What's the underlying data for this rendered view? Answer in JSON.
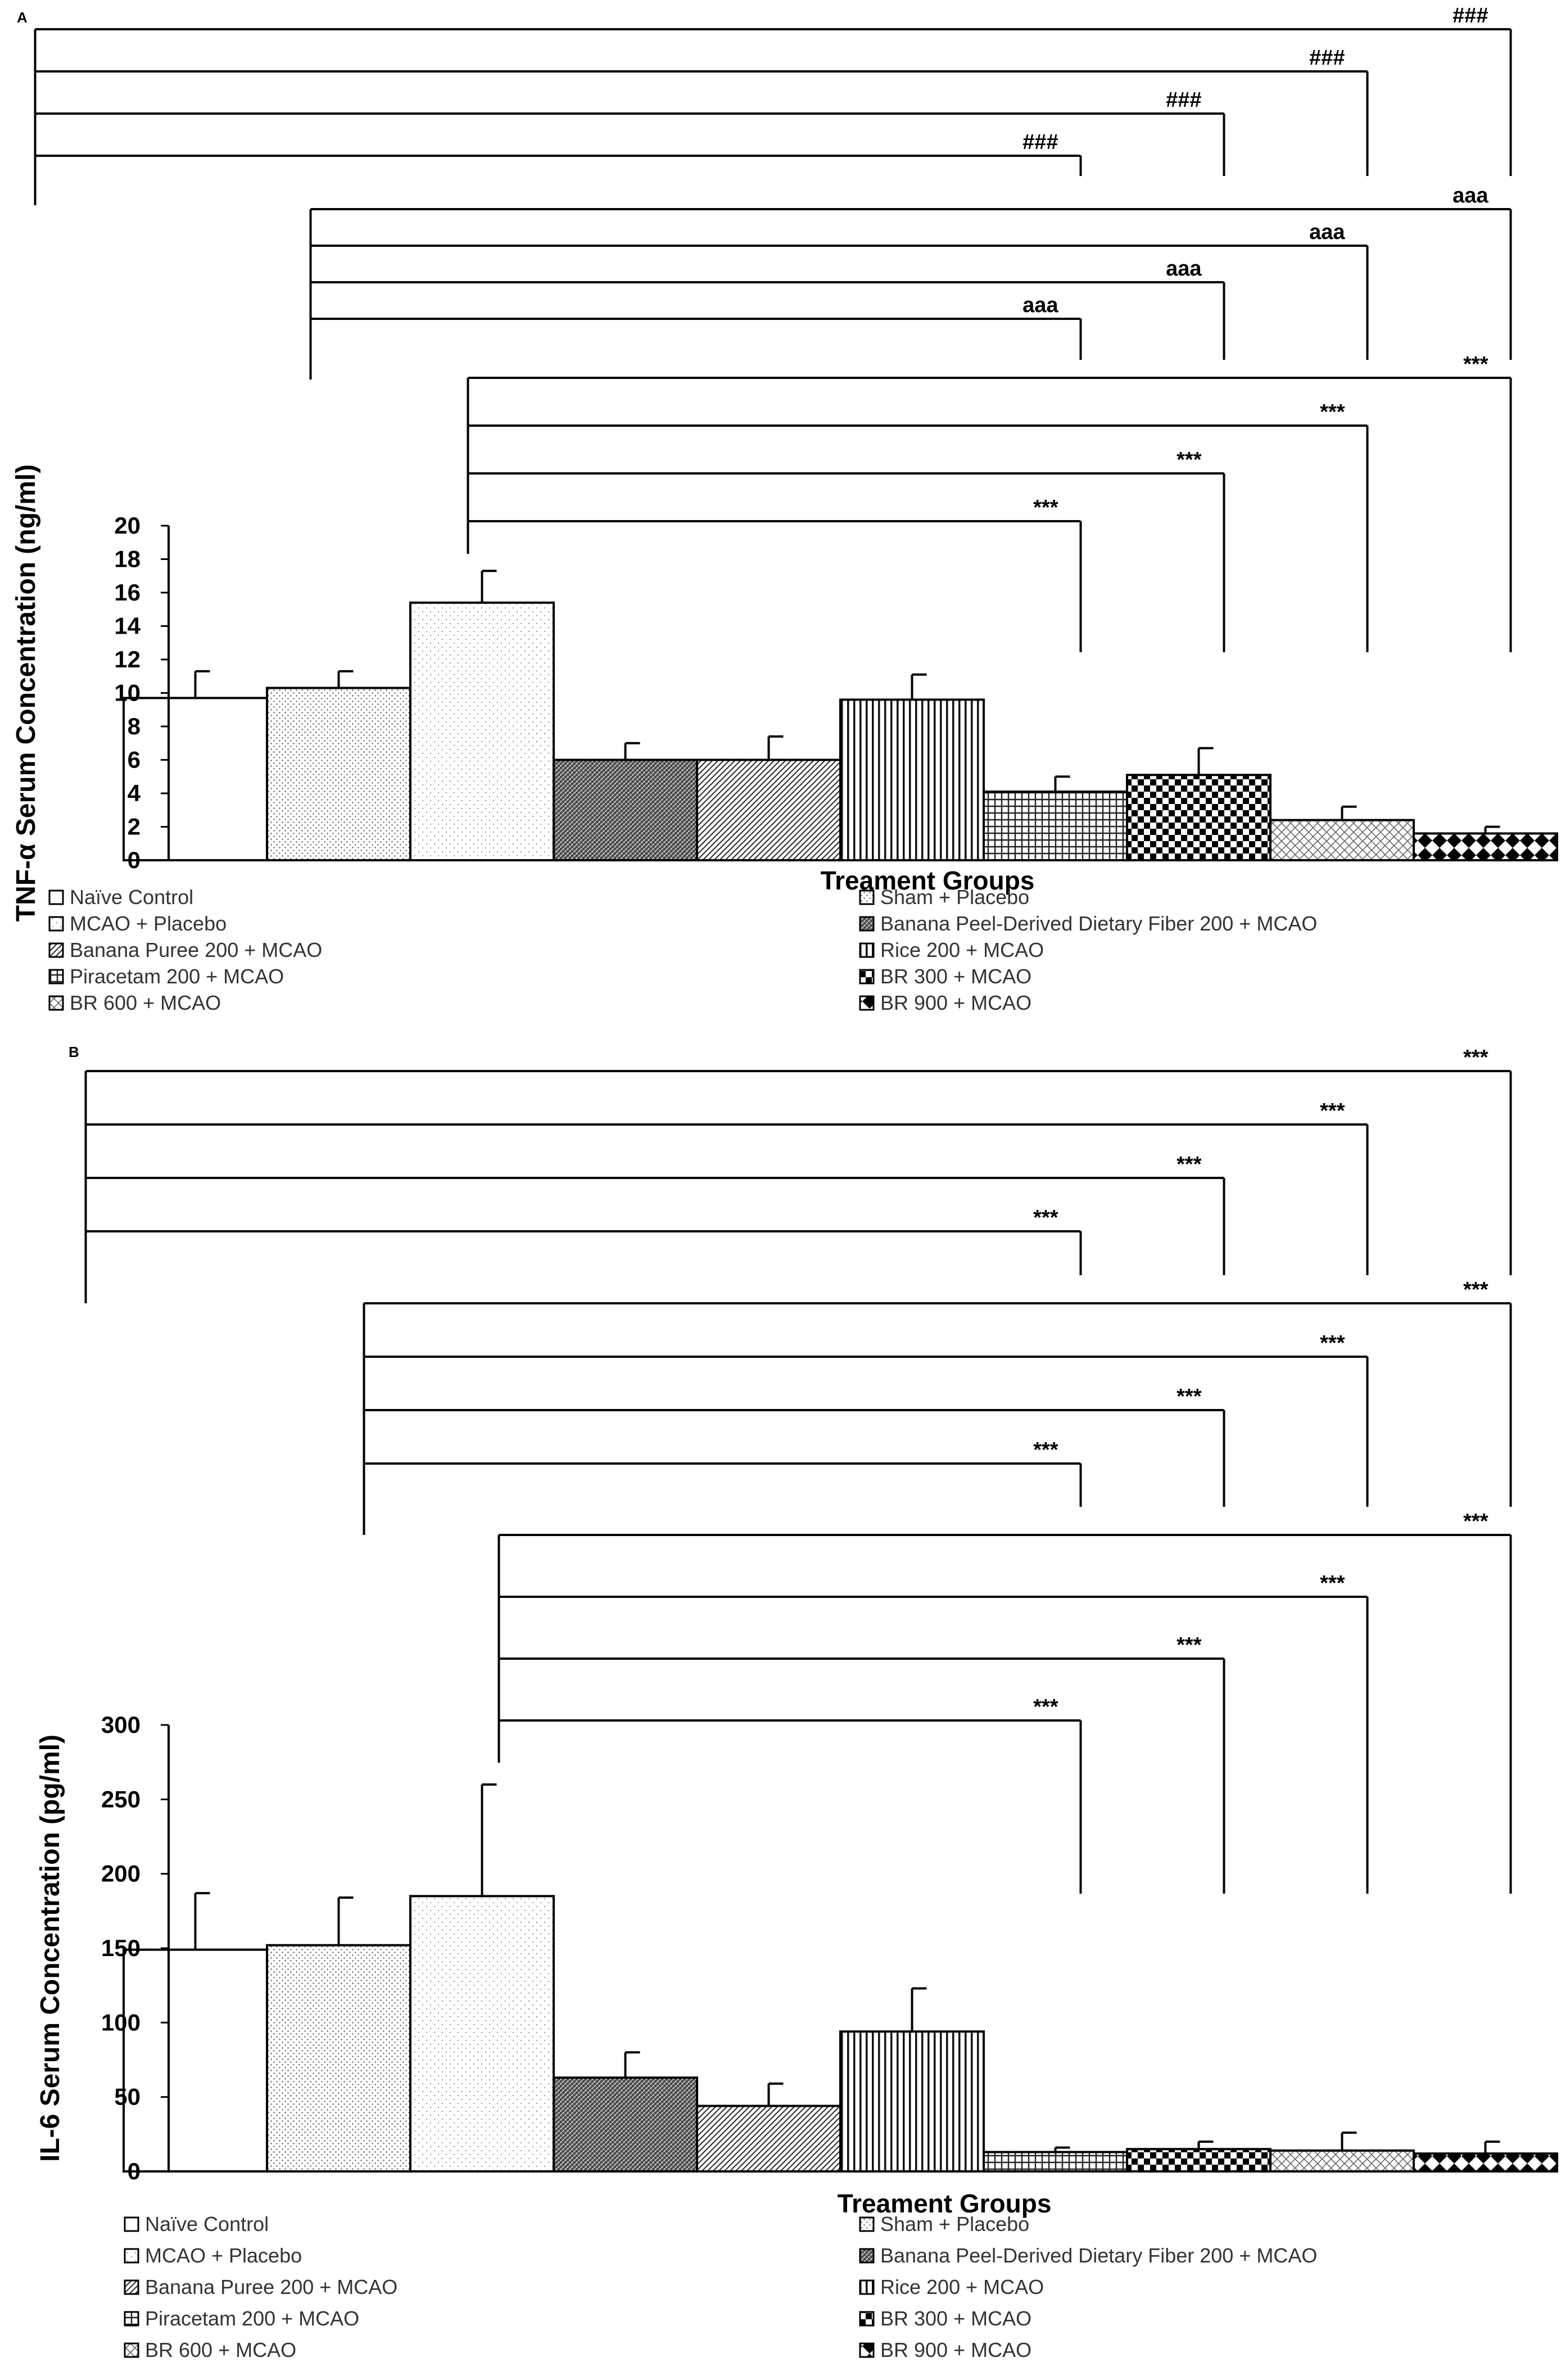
{
  "panels": [
    "A",
    "B"
  ],
  "chart_data": [
    {
      "type": "bar",
      "panel": "A",
      "title": "",
      "xlabel": "Treament Groups",
      "ylabel": "TNF-α Serum Concentration (ng/ml)",
      "ylim": [
        0,
        20
      ],
      "yticks": [
        0,
        2,
        4,
        6,
        8,
        10,
        12,
        14,
        16,
        18,
        20
      ],
      "categories": [
        "Naïve Control",
        "Sham + Placebo",
        "MCAO + Placebo",
        "Banana Peel-Derived Dietary Fiber 200 + MCAO",
        "Banana Puree 200 + MCAO",
        "Rice 200 + MCAO",
        "Piracetam 200 + MCAO",
        "BR 300 + MCAO",
        "BR 600 + MCAO",
        "BR 900 + MCAO"
      ],
      "values": [
        9.7,
        10.3,
        15.4,
        6.0,
        6.0,
        9.6,
        4.1,
        5.1,
        2.4,
        1.6
      ],
      "errors": [
        1.6,
        1.0,
        1.9,
        1.0,
        1.4,
        1.5,
        0.9,
        1.6,
        0.8,
        0.4
      ],
      "significance": [
        {
          "from": 0,
          "to": 9,
          "label": "###"
        },
        {
          "from": 0,
          "to": 8,
          "label": "###"
        },
        {
          "from": 0,
          "to": 7,
          "label": "###"
        },
        {
          "from": 0,
          "to": 6,
          "label": "###"
        },
        {
          "from": 1,
          "to": 9,
          "label": "aaa"
        },
        {
          "from": 1,
          "to": 8,
          "label": "aaa"
        },
        {
          "from": 1,
          "to": 7,
          "label": "aaa"
        },
        {
          "from": 1,
          "to": 6,
          "label": "aaa"
        },
        {
          "from": 2,
          "to": 9,
          "label": "***"
        },
        {
          "from": 2,
          "to": 8,
          "label": "***"
        },
        {
          "from": 2,
          "to": 7,
          "label": "***"
        },
        {
          "from": 2,
          "to": 6,
          "label": "***"
        }
      ],
      "legend": [
        "Naïve Control",
        "Sham + Placebo",
        "MCAO + Placebo",
        "Banana Peel-Derived Dietary Fiber 200 + MCAO",
        "Banana Puree 200 + MCAO",
        "Rice 200 + MCAO",
        "Piracetam 200 + MCAO",
        "BR 300 + MCAO",
        "BR 600 + MCAO",
        "BR 900 + MCAO"
      ]
    },
    {
      "type": "bar",
      "panel": "B",
      "title": "",
      "xlabel": "Treament Groups",
      "ylabel": "IL-6 Serum Concentration (pg/ml)",
      "ylim": [
        0,
        300
      ],
      "yticks": [
        0,
        50,
        100,
        150,
        200,
        250,
        300
      ],
      "categories": [
        "Naïve Control",
        "Sham + Placebo",
        "MCAO + Placebo",
        "Banana Peel-Derived Dietary Fiber 200 + MCAO",
        "Banana Puree 200 + MCAO",
        "Rice 200 + MCAO",
        "Piracetam 200 + MCAO",
        "BR 300 + MCAO",
        "BR 600 + MCAO",
        "BR 900 + MCAO"
      ],
      "values": [
        149,
        152,
        185,
        63,
        44,
        94,
        13,
        15,
        14,
        12
      ],
      "errors": [
        38,
        32,
        75,
        17,
        15,
        29,
        3,
        5,
        12,
        8
      ],
      "significance": [
        {
          "from": 0,
          "to": 9,
          "label": "***"
        },
        {
          "from": 0,
          "to": 8,
          "label": "***"
        },
        {
          "from": 0,
          "to": 7,
          "label": "***"
        },
        {
          "from": 0,
          "to": 6,
          "label": "***"
        },
        {
          "from": 1,
          "to": 9,
          "label": "***"
        },
        {
          "from": 1,
          "to": 8,
          "label": "***"
        },
        {
          "from": 1,
          "to": 7,
          "label": "***"
        },
        {
          "from": 1,
          "to": 6,
          "label": "***"
        },
        {
          "from": 2,
          "to": 9,
          "label": "***"
        },
        {
          "from": 2,
          "to": 8,
          "label": "***"
        },
        {
          "from": 2,
          "to": 7,
          "label": "***"
        },
        {
          "from": 2,
          "to": 6,
          "label": "***"
        }
      ],
      "legend": [
        "Naïve Control",
        "Sham + Placebo",
        "MCAO + Placebo",
        "Banana Peel-Derived Dietary Fiber 200 + MCAO",
        "Banana Puree 200 + MCAO",
        "Rice 200 + MCAO",
        "Piracetam 200 + MCAO",
        "BR 300 + MCAO",
        "BR 600 + MCAO",
        "BR 900 + MCAO"
      ]
    }
  ]
}
